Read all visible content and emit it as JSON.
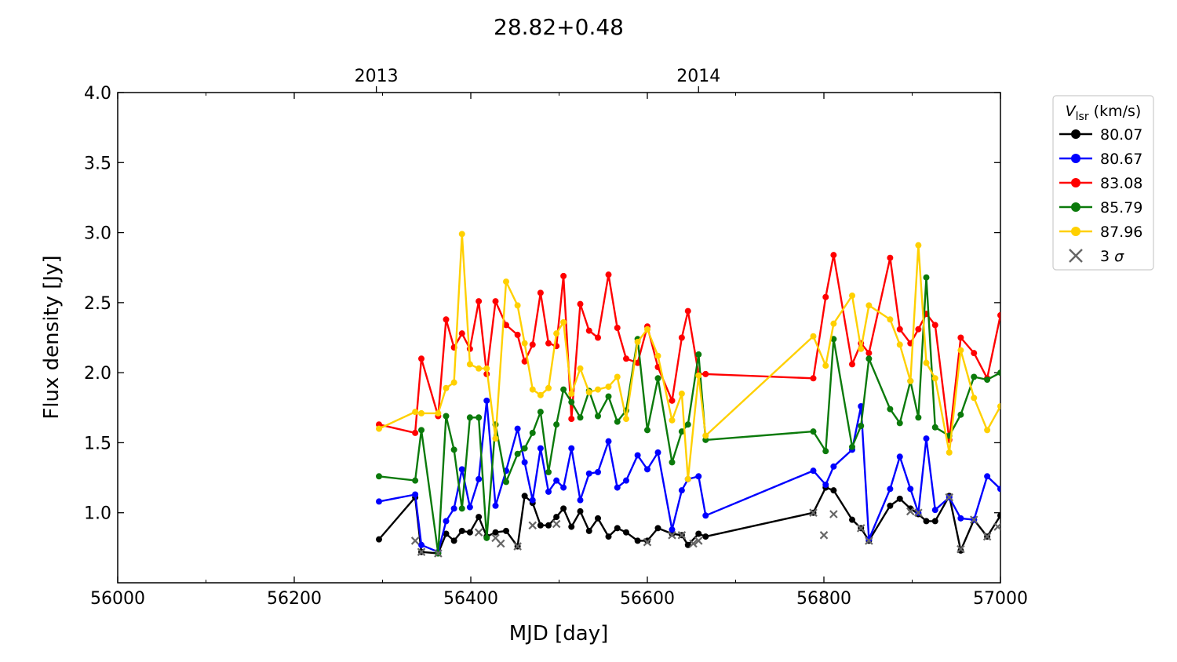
{
  "chart_data": {
    "type": "line",
    "title": "28.82+0.48",
    "xlabel": "MJD [day]",
    "ylabel": "Flux density [Jy]",
    "xlim": [
      56000,
      57000
    ],
    "ylim": [
      0.5,
      4.0
    ],
    "xticks": [
      56000,
      56200,
      56400,
      56600,
      56800,
      57000
    ],
    "yticks": [
      1.0,
      1.5,
      2.0,
      2.5,
      3.0,
      3.5,
      4.0
    ],
    "top_axis": {
      "ticks": [
        {
          "label": "2013",
          "x": 56293
        },
        {
          "label": "2014",
          "x": 56658
        }
      ]
    },
    "grid": false,
    "legend": {
      "title_symbol": "V",
      "title_subscript": "lsr",
      "title_unit": " (km/s)",
      "placement": "outside-right"
    },
    "series": [
      {
        "name": "80.07",
        "color": "#000000",
        "x": [
          56296,
          56337,
          56344,
          56363,
          56372,
          56381,
          56390,
          56399,
          56409,
          56418,
          56428,
          56440,
          56453,
          56461,
          56470,
          56479,
          56488,
          56497,
          56505,
          56514,
          56524,
          56534,
          56544,
          56556,
          56566,
          56576,
          56589,
          56600,
          56612,
          56628,
          56639,
          56646,
          56658,
          56666,
          56788,
          56802,
          56811,
          56832,
          56842,
          56851,
          56875,
          56886,
          56898,
          56907,
          56916,
          56926,
          56942,
          56955,
          56970,
          56985,
          57000
        ],
        "y": [
          0.81,
          1.11,
          0.72,
          0.71,
          0.85,
          0.8,
          0.87,
          0.86,
          0.97,
          0.83,
          0.86,
          0.87,
          0.76,
          1.12,
          1.07,
          0.91,
          0.91,
          0.97,
          1.03,
          0.9,
          1.01,
          0.87,
          0.96,
          0.83,
          0.89,
          0.86,
          0.8,
          0.8,
          0.89,
          0.85,
          0.84,
          0.77,
          0.85,
          0.83,
          1.0,
          1.18,
          1.16,
          0.95,
          0.89,
          0.8,
          1.05,
          1.1,
          1.03,
          0.99,
          0.94,
          0.94,
          1.12,
          0.73,
          0.95,
          0.83,
          0.98
        ]
      },
      {
        "name": "80.67",
        "color": "#0000ff",
        "x": [
          56296,
          56337,
          56344,
          56363,
          56372,
          56381,
          56390,
          56399,
          56409,
          56418,
          56428,
          56440,
          56453,
          56461,
          56470,
          56479,
          56488,
          56497,
          56505,
          56514,
          56524,
          56534,
          56544,
          56556,
          56566,
          56576,
          56589,
          56600,
          56612,
          56628,
          56639,
          56646,
          56658,
          56666,
          56788,
          56802,
          56811,
          56832,
          56842,
          56851,
          56875,
          56886,
          56898,
          56907,
          56916,
          56926,
          56942,
          56955,
          56970,
          56985,
          57000
        ],
        "y": [
          1.08,
          1.13,
          0.77,
          0.72,
          0.94,
          1.03,
          1.31,
          1.04,
          1.24,
          1.8,
          1.05,
          1.3,
          1.6,
          1.36,
          1.09,
          1.46,
          1.15,
          1.23,
          1.18,
          1.46,
          1.09,
          1.28,
          1.29,
          1.51,
          1.18,
          1.23,
          1.41,
          1.31,
          1.43,
          0.88,
          1.16,
          1.24,
          1.26,
          0.98,
          1.3,
          1.2,
          1.33,
          1.45,
          1.76,
          0.81,
          1.17,
          1.4,
          1.17,
          1.0,
          1.53,
          1.02,
          1.11,
          0.96,
          0.95,
          1.26,
          1.17
        ]
      },
      {
        "name": "83.08",
        "color": "#ff0000",
        "x": [
          56296,
          56337,
          56344,
          56363,
          56372,
          56381,
          56390,
          56399,
          56409,
          56418,
          56428,
          56440,
          56453,
          56461,
          56470,
          56479,
          56488,
          56497,
          56505,
          56514,
          56524,
          56534,
          56544,
          56556,
          56566,
          56576,
          56589,
          56600,
          56612,
          56628,
          56639,
          56646,
          56658,
          56666,
          56788,
          56802,
          56811,
          56832,
          56842,
          56851,
          56875,
          56886,
          56898,
          56907,
          56916,
          56926,
          56942,
          56955,
          56970,
          56985,
          57000
        ],
        "y": [
          1.63,
          1.57,
          2.1,
          1.69,
          2.38,
          2.18,
          2.28,
          2.17,
          2.51,
          1.99,
          2.51,
          2.34,
          2.27,
          2.08,
          2.2,
          2.57,
          2.21,
          2.19,
          2.69,
          1.67,
          2.49,
          2.3,
          2.25,
          2.7,
          2.32,
          2.1,
          2.07,
          2.33,
          2.04,
          1.8,
          2.25,
          2.44,
          1.99,
          1.99,
          1.96,
          2.54,
          2.84,
          2.06,
          2.21,
          2.14,
          2.82,
          2.31,
          2.21,
          2.31,
          2.42,
          2.34,
          1.52,
          2.25,
          2.14,
          1.96,
          2.41
        ]
      },
      {
        "name": "85.79",
        "color": "#0b7a0b",
        "x": [
          56296,
          56337,
          56344,
          56363,
          56372,
          56381,
          56390,
          56399,
          56409,
          56418,
          56428,
          56440,
          56453,
          56461,
          56470,
          56479,
          56488,
          56497,
          56505,
          56514,
          56524,
          56534,
          56544,
          56556,
          56566,
          56576,
          56589,
          56600,
          56612,
          56628,
          56639,
          56646,
          56658,
          56666,
          56788,
          56802,
          56811,
          56832,
          56842,
          56851,
          56875,
          56886,
          56898,
          56907,
          56916,
          56926,
          56942,
          56955,
          56970,
          56985,
          57000
        ],
        "y": [
          1.26,
          1.23,
          1.59,
          0.71,
          1.69,
          1.45,
          1.03,
          1.68,
          1.68,
          0.82,
          1.63,
          1.22,
          1.42,
          1.46,
          1.57,
          1.72,
          1.29,
          1.63,
          1.88,
          1.79,
          1.68,
          1.87,
          1.69,
          1.83,
          1.65,
          1.73,
          2.24,
          1.59,
          1.96,
          1.36,
          1.58,
          1.63,
          2.13,
          1.52,
          1.58,
          1.44,
          2.24,
          1.47,
          1.62,
          2.1,
          1.74,
          1.64,
          1.94,
          1.68,
          2.68,
          1.61,
          1.55,
          1.7,
          1.97,
          1.95,
          2.0
        ]
      },
      {
        "name": "87.96",
        "color": "#ffd000",
        "x": [
          56296,
          56337,
          56344,
          56363,
          56372,
          56381,
          56390,
          56399,
          56409,
          56418,
          56428,
          56440,
          56453,
          56461,
          56470,
          56479,
          56488,
          56497,
          56505,
          56514,
          56524,
          56534,
          56544,
          56556,
          56566,
          56576,
          56589,
          56600,
          56612,
          56628,
          56639,
          56646,
          56658,
          56666,
          56788,
          56802,
          56811,
          56832,
          56842,
          56851,
          56875,
          56886,
          56898,
          56907,
          56916,
          56926,
          56942,
          56955,
          56970,
          56985,
          57000
        ],
        "y": [
          1.6,
          1.72,
          1.71,
          1.71,
          1.89,
          1.93,
          2.99,
          2.06,
          2.03,
          2.03,
          1.53,
          2.65,
          2.48,
          2.21,
          1.88,
          1.84,
          1.89,
          2.28,
          2.36,
          1.85,
          2.03,
          1.86,
          1.88,
          1.9,
          1.97,
          1.67,
          2.22,
          2.31,
          2.12,
          1.66,
          1.85,
          1.24,
          1.98,
          1.55,
          2.26,
          2.05,
          2.35,
          2.55,
          2.17,
          2.48,
          2.38,
          2.2,
          1.94,
          2.91,
          2.07,
          1.96,
          1.43,
          2.16,
          1.82,
          1.59,
          1.76
        ]
      },
      {
        "name": "3 σ",
        "symbol_label": "3 ",
        "symbol_italic": "σ",
        "color": "#666666",
        "marker": "x",
        "line": false,
        "x": [
          56337,
          56344,
          56363,
          56409,
          56428,
          56434,
          56453,
          56470,
          56497,
          56600,
          56628,
          56639,
          56652,
          56658,
          56788,
          56800,
          56811,
          56842,
          56851,
          56898,
          56907,
          56942,
          56955,
          56970,
          56985,
          56997
        ],
        "y": [
          0.8,
          0.72,
          0.71,
          0.86,
          0.82,
          0.78,
          0.76,
          0.91,
          0.92,
          0.79,
          0.84,
          0.84,
          0.78,
          0.8,
          1.0,
          0.84,
          0.99,
          0.89,
          0.8,
          1.01,
          1.0,
          1.11,
          0.74,
          0.95,
          0.83,
          0.9
        ]
      }
    ]
  }
}
